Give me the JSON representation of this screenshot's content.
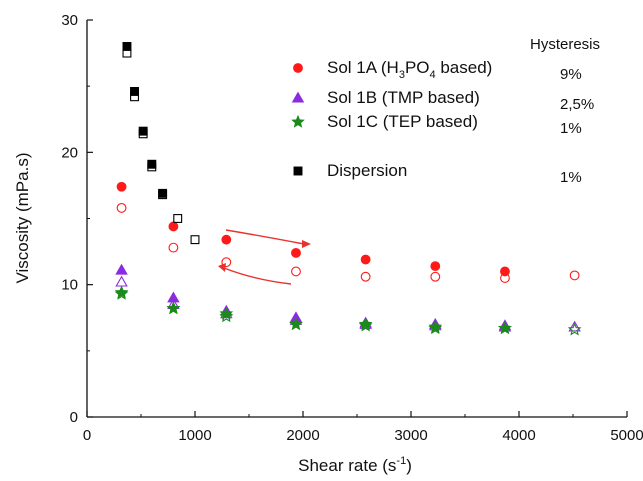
{
  "chart_data": {
    "type": "scatter",
    "xlabel": "Shear rate (s",
    "xlabel_sup": "-1",
    "xlabel_end": ")",
    "ylabel": "Viscosity (mPa.s)",
    "xlim": [
      0,
      5000
    ],
    "ylim": [
      0,
      30
    ],
    "xticks": [
      0,
      1000,
      2000,
      3000,
      4000,
      5000
    ],
    "yticks": [
      0,
      10,
      20,
      30
    ],
    "grid": false,
    "legend_position": "top-right",
    "hysteresis_header": "Hysteresis",
    "series": [
      {
        "name": "Sol 1A (H3PO4 based)",
        "legend_parts": [
          "Sol 1A (H",
          "3",
          "PO",
          "4",
          " based)"
        ],
        "hysteresis": "9%",
        "color": "#ff1a1a",
        "marker": "circle",
        "up": [
          [
            320,
            17.4
          ],
          [
            800,
            14.4
          ],
          [
            1290,
            13.4
          ],
          [
            1935,
            12.4
          ],
          [
            2580,
            11.9
          ],
          [
            3225,
            11.4
          ],
          [
            3870,
            11.0
          ]
        ],
        "down": [
          [
            320,
            15.8
          ],
          [
            800,
            12.8
          ],
          [
            1290,
            11.7
          ],
          [
            1935,
            11.0
          ],
          [
            2580,
            10.6
          ],
          [
            3225,
            10.6
          ],
          [
            3870,
            10.5
          ],
          [
            4515,
            10.7
          ]
        ]
      },
      {
        "name": "Sol 1B (TMP based)",
        "hysteresis": "2,5%",
        "color": "#8a2be2",
        "marker": "triangle",
        "up": [
          [
            320,
            11.1
          ],
          [
            800,
            9.0
          ],
          [
            1290,
            8.0
          ],
          [
            1935,
            7.5
          ],
          [
            2580,
            7.1
          ],
          [
            3225,
            7.0
          ],
          [
            3870,
            6.9
          ]
        ],
        "down": [
          [
            320,
            10.2
          ],
          [
            800,
            8.5
          ],
          [
            1290,
            7.8
          ],
          [
            1935,
            7.3
          ],
          [
            2580,
            7.0
          ],
          [
            3225,
            6.9
          ],
          [
            3870,
            6.8
          ],
          [
            4515,
            6.8
          ]
        ]
      },
      {
        "name": "Sol 1C (TEP based)",
        "hysteresis": "1%",
        "color": "#1a8a1a",
        "marker": "star",
        "up": [
          [
            320,
            9.4
          ],
          [
            800,
            8.2
          ],
          [
            1290,
            7.8
          ],
          [
            1935,
            7.0
          ],
          [
            2580,
            7.0
          ],
          [
            3225,
            6.8
          ],
          [
            3870,
            6.7
          ]
        ],
        "down": [
          [
            320,
            9.3
          ],
          [
            800,
            8.2
          ],
          [
            1290,
            7.6
          ],
          [
            1935,
            7.0
          ],
          [
            2580,
            6.9
          ],
          [
            3225,
            6.7
          ],
          [
            3870,
            6.7
          ],
          [
            4515,
            6.6
          ]
        ]
      },
      {
        "name": "Dispersion",
        "hysteresis": "1%",
        "color": "#000000",
        "marker": "square",
        "up": [
          [
            370,
            28.0
          ],
          [
            440,
            24.6
          ],
          [
            520,
            21.6
          ],
          [
            600,
            19.1
          ],
          [
            700,
            16.9
          ]
        ],
        "down": [
          [
            370,
            27.5
          ],
          [
            440,
            24.2
          ],
          [
            520,
            21.4
          ],
          [
            600,
            18.9
          ],
          [
            700,
            16.8
          ],
          [
            840,
            15.0
          ],
          [
            1000,
            13.4
          ]
        ]
      }
    ]
  }
}
